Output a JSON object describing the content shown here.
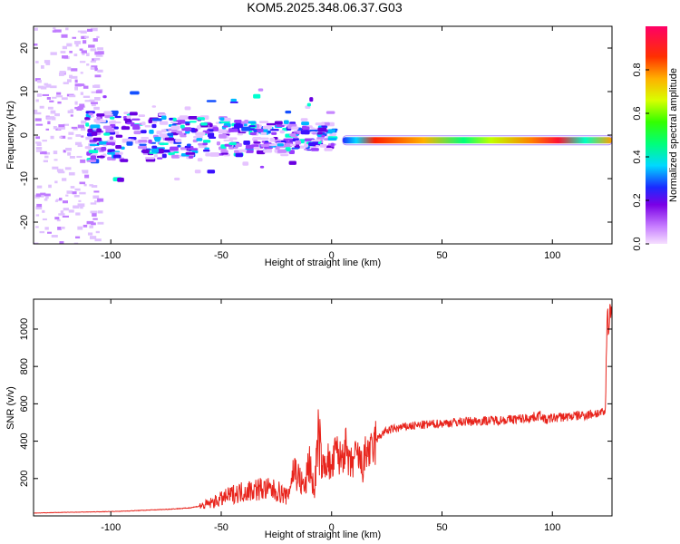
{
  "title": "KOM5.2025.348.06.37.G03",
  "chart_data": [
    {
      "type": "heatmap",
      "xlabel": "Height of straight line (km)",
      "ylabel": "Frequency (Hz)",
      "xlim": [
        -135,
        127
      ],
      "ylim": [
        -25,
        25
      ],
      "xticks": [
        -100,
        -50,
        0,
        50,
        100
      ],
      "yticks": [
        -20,
        -10,
        0,
        10,
        20
      ],
      "colorbar": {
        "label": "Normalized spectral amplitude",
        "range": [
          0.0,
          1.0
        ],
        "ticks": [
          0.0,
          0.2,
          0.4,
          0.6,
          0.8
        ]
      }
    },
    {
      "type": "line",
      "xlabel": "Height of straight line (km)",
      "ylabel": "SNR (v/v)",
      "xlim": [
        -135,
        127
      ],
      "ylim": [
        0,
        1160
      ],
      "xticks": [
        -100,
        -50,
        0,
        50,
        100
      ],
      "yticks": [
        200,
        400,
        600,
        800,
        1000
      ],
      "color": "#e8241c",
      "series": [
        {
          "x": [
            -135,
            -125,
            -115,
            -105,
            -95,
            -85,
            -75,
            -65,
            -58,
            -52,
            -48,
            -44,
            -40,
            -36,
            -32,
            -28,
            -24,
            -20,
            -17,
            -14,
            -12,
            -10,
            -8,
            -6,
            -4,
            -2,
            0,
            2,
            4,
            6,
            8,
            10,
            12,
            14,
            16,
            18,
            20,
            22,
            24,
            26,
            30,
            35,
            40,
            45,
            50,
            55,
            60,
            70,
            80,
            90,
            95,
            97,
            100,
            105,
            110,
            115,
            120,
            123,
            124,
            124.5,
            125,
            125.5,
            126,
            127
          ],
          "y": [
            15,
            18,
            20,
            22,
            25,
            30,
            35,
            42,
            55,
            80,
            100,
            120,
            130,
            140,
            145,
            140,
            130,
            100,
            260,
            180,
            150,
            300,
            120,
            420,
            250,
            310,
            240,
            350,
            300,
            380,
            260,
            300,
            320,
            250,
            360,
            330,
            400,
            430,
            450,
            460,
            470,
            480,
            485,
            490,
            495,
            500,
            505,
            510,
            515,
            525,
            540,
            510,
            525,
            530,
            535,
            540,
            550,
            550,
            555,
            900,
            1150,
            950,
            1100,
            1120
          ]
        }
      ]
    }
  ]
}
